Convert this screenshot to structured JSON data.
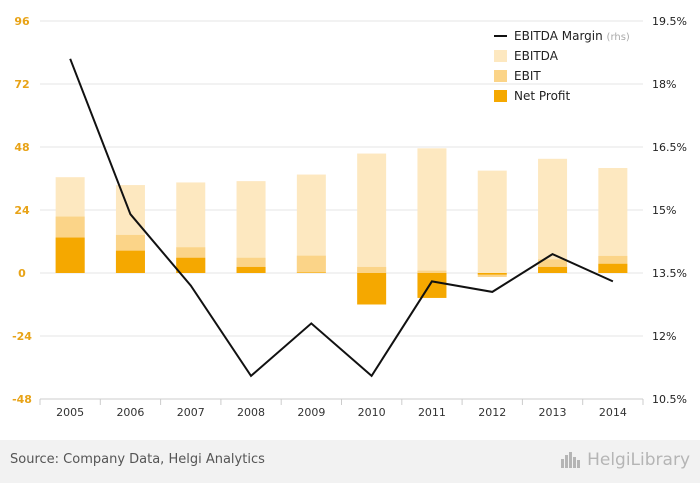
{
  "colors": {
    "ebitda": "#fde8c0",
    "ebit": "#fbd488",
    "net_profit": "#f5a800",
    "margin_line": "#111111",
    "left_tick": "#e8a317",
    "right_tick": "#222222",
    "grid": "#e4e4e4"
  },
  "chart_data": {
    "type": "bar",
    "categories": [
      "2005",
      "2006",
      "2007",
      "2008",
      "2009",
      "2010",
      "2011",
      "2012",
      "2013",
      "2014"
    ],
    "series": [
      {
        "name": "EBITDA",
        "key": "ebitda",
        "values": [
          36.5,
          33.5,
          34.5,
          35.0,
          37.5,
          45.5,
          47.5,
          39.0,
          43.5,
          40.0
        ]
      },
      {
        "name": "EBIT",
        "key": "ebit",
        "values": [
          21.5,
          14.5,
          9.8,
          5.8,
          6.6,
          2.3,
          0.9,
          -1.5,
          5.2,
          6.5
        ]
      },
      {
        "name": "Net Profit",
        "key": "net_profit",
        "values": [
          13.5,
          8.5,
          5.8,
          2.3,
          0.2,
          -12.0,
          -9.5,
          -0.6,
          2.3,
          3.5
        ]
      }
    ],
    "line": {
      "name": "EBITDA Margin",
      "name_suffix": "(rhs)",
      "values_pct": [
        18.6,
        14.9,
        13.2,
        11.05,
        12.3,
        11.05,
        13.3,
        13.05,
        13.95,
        13.3
      ]
    },
    "y_left": {
      "ylim": [
        -48,
        96
      ],
      "ticks": [
        "96",
        "72",
        "48",
        "24",
        "0",
        "-24",
        "-48"
      ],
      "tick_values": [
        96,
        72,
        48,
        24,
        0,
        -24,
        -48
      ]
    },
    "y_right": {
      "ylim": [
        10.5,
        19.5
      ],
      "ticks": [
        "19.5%",
        "18%",
        "16.5%",
        "15%",
        "13.5%",
        "12%",
        "10.5%"
      ],
      "tick_values": [
        19.5,
        18,
        16.5,
        15,
        13.5,
        12,
        10.5
      ]
    },
    "legend_position": "top-right",
    "grid": true
  },
  "footer": {
    "source": "Source: Company Data, Helgi Analytics",
    "logo_text": "HelgiLibrary"
  }
}
